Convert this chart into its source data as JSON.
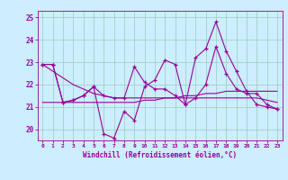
{
  "xlabel": "Windchill (Refroidissement éolien,°C)",
  "background_color": "#cceeff",
  "grid_color": "#99ccbb",
  "line_color": "#990099",
  "x_hours": [
    0,
    1,
    2,
    3,
    4,
    5,
    6,
    7,
    8,
    9,
    10,
    11,
    12,
    13,
    14,
    15,
    16,
    17,
    18,
    19,
    20,
    21,
    22,
    23
  ],
  "series1": [
    22.9,
    22.9,
    21.2,
    21.3,
    21.5,
    21.9,
    19.8,
    19.6,
    20.8,
    20.4,
    21.9,
    22.2,
    23.1,
    22.9,
    21.1,
    23.2,
    23.6,
    24.8,
    23.5,
    22.6,
    21.7,
    21.1,
    21.0,
    20.9
  ],
  "series2": [
    22.9,
    22.9,
    21.2,
    21.3,
    21.5,
    21.9,
    21.5,
    21.4,
    21.4,
    22.8,
    22.1,
    21.8,
    21.8,
    21.5,
    21.1,
    21.4,
    22.0,
    23.7,
    22.5,
    21.8,
    21.6,
    21.6,
    21.1,
    20.9
  ],
  "series3": [
    22.9,
    22.6,
    22.3,
    22.0,
    21.8,
    21.6,
    21.5,
    21.4,
    21.4,
    21.4,
    21.4,
    21.4,
    21.4,
    21.4,
    21.4,
    21.4,
    21.4,
    21.4,
    21.4,
    21.4,
    21.4,
    21.4,
    21.3,
    21.2
  ],
  "series4": [
    21.2,
    21.2,
    21.2,
    21.2,
    21.2,
    21.2,
    21.2,
    21.2,
    21.2,
    21.2,
    21.3,
    21.3,
    21.4,
    21.4,
    21.5,
    21.5,
    21.6,
    21.6,
    21.7,
    21.7,
    21.7,
    21.7,
    21.7,
    21.7
  ],
  "ylim": [
    19.5,
    25.3
  ],
  "yticks": [
    20,
    21,
    22,
    23,
    24,
    25
  ],
  "xticks": [
    0,
    1,
    2,
    3,
    4,
    5,
    6,
    7,
    8,
    9,
    10,
    11,
    12,
    13,
    14,
    15,
    16,
    17,
    18,
    19,
    20,
    21,
    22,
    23
  ]
}
